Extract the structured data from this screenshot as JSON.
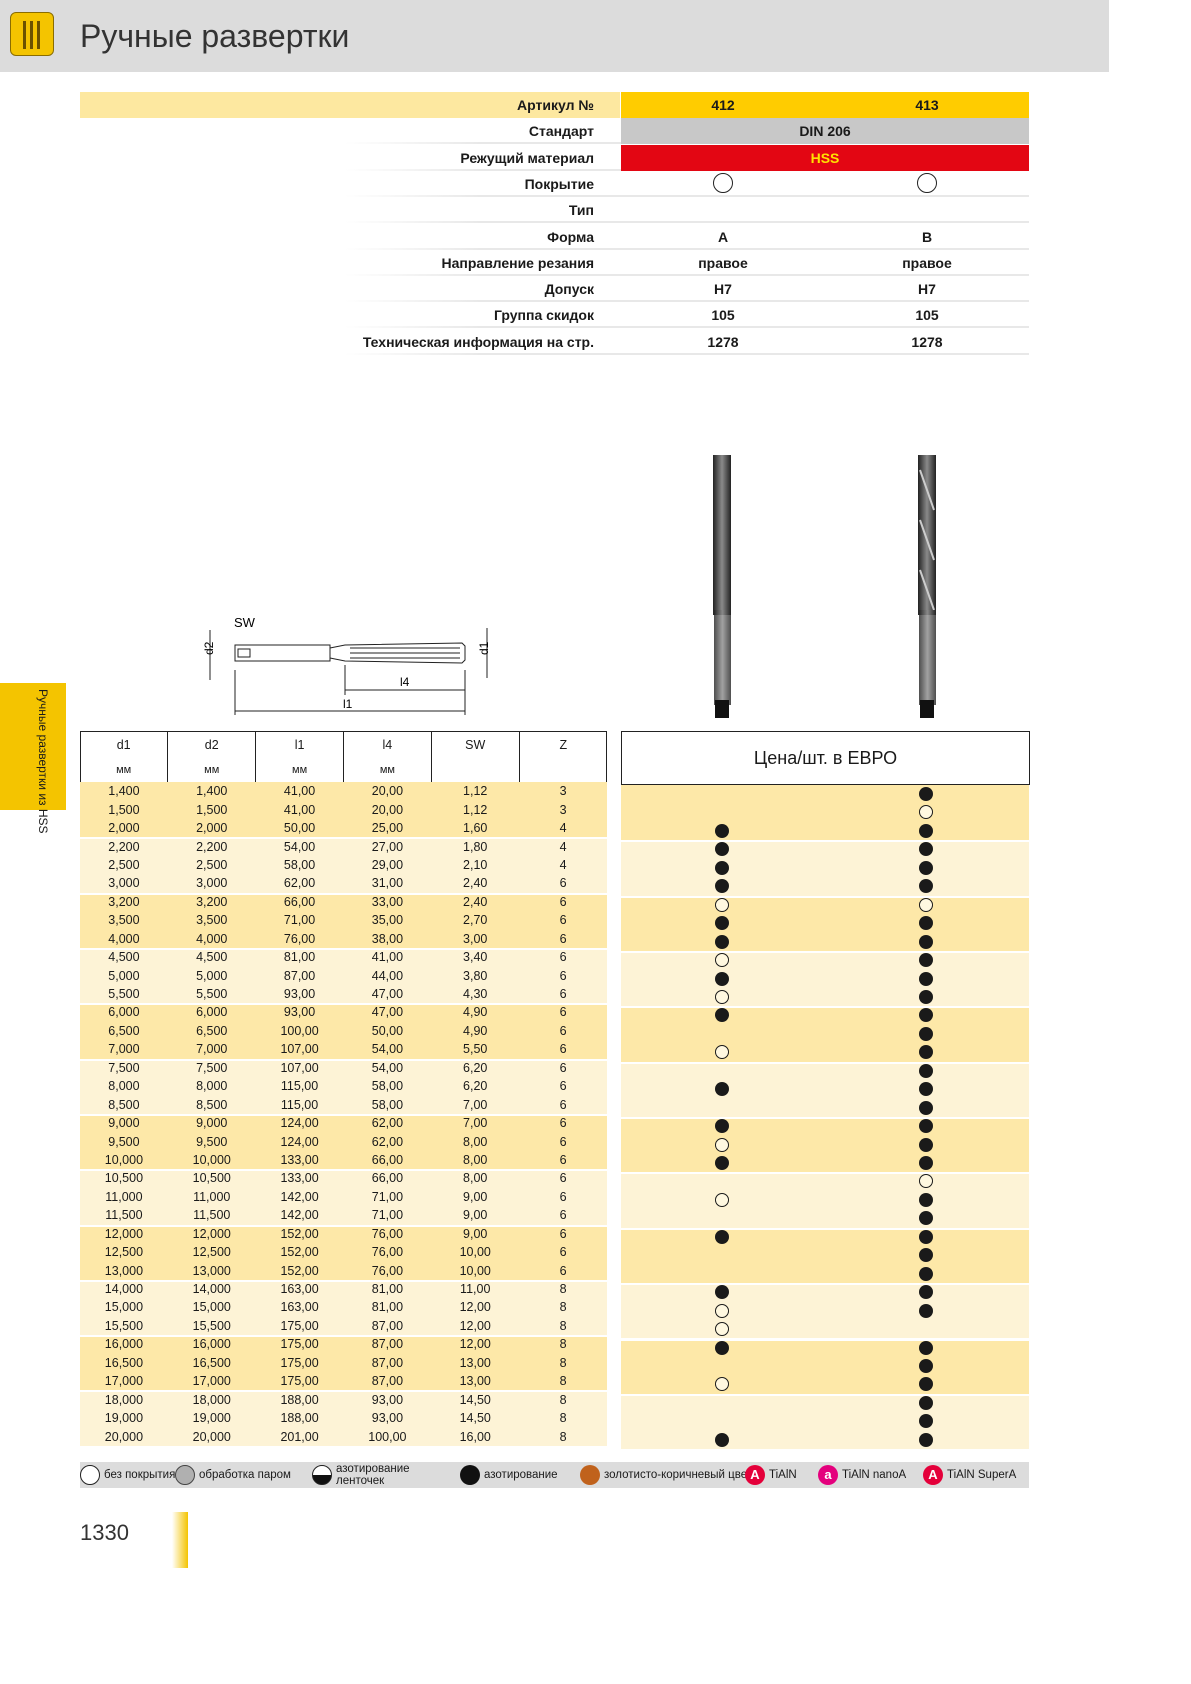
{
  "header": {
    "title": "Ручные развертки",
    "icon": "reamer-catalog-icon"
  },
  "side_tab": {
    "text": "Ручные развертки из HSS"
  },
  "specs": {
    "rows": [
      {
        "label": "Артикул №",
        "v412": "412",
        "v413": "413"
      },
      {
        "label": "Стандарт",
        "merged": "DIN 206"
      },
      {
        "label": "Режущий материал",
        "merged": "HSS"
      },
      {
        "label": "Покрытие",
        "v412": "",
        "v413": ""
      },
      {
        "label": "Тип",
        "v412": "",
        "v413": ""
      },
      {
        "label": "Форма",
        "v412": "A",
        "v413": "B"
      },
      {
        "label": "Направление резания",
        "v412": "правое",
        "v413": "правое"
      },
      {
        "label": "Допуск",
        "v412": "H7",
        "v413": "H7"
      },
      {
        "label": "Группа скидок",
        "v412": "105",
        "v413": "105"
      },
      {
        "label": "Техническая информация на стр.",
        "v412": "1278",
        "v413": "1278"
      }
    ],
    "colors": {
      "article": "#ffcc00",
      "article_label": "#fde8a0",
      "standard": "#c8c8c8",
      "material": "#e30613"
    }
  },
  "drawing": {
    "labels": {
      "sw": "SW",
      "d2": "d2",
      "d1": "d1",
      "l4": "l4",
      "l1": "l1"
    }
  },
  "table": {
    "headers": [
      "d1",
      "d2",
      "l1",
      "l4",
      "SW",
      "Z"
    ],
    "units": [
      "мм",
      "мм",
      "мм",
      "мм",
      "",
      ""
    ],
    "price_header": "Цена/шт. в ЕВРО",
    "rows": [
      [
        "1,400",
        "1,400",
        "41,00",
        "20,00",
        "1,12",
        "3",
        "",
        "f"
      ],
      [
        "1,500",
        "1,500",
        "41,00",
        "20,00",
        "1,12",
        "3",
        "",
        "o"
      ],
      [
        "2,000",
        "2,000",
        "50,00",
        "25,00",
        "1,60",
        "4",
        "f",
        "f"
      ],
      [
        "2,200",
        "2,200",
        "54,00",
        "27,00",
        "1,80",
        "4",
        "f",
        "f"
      ],
      [
        "2,500",
        "2,500",
        "58,00",
        "29,00",
        "2,10",
        "4",
        "f",
        "f"
      ],
      [
        "3,000",
        "3,000",
        "62,00",
        "31,00",
        "2,40",
        "6",
        "f",
        "f"
      ],
      [
        "3,200",
        "3,200",
        "66,00",
        "33,00",
        "2,40",
        "6",
        "o",
        "o"
      ],
      [
        "3,500",
        "3,500",
        "71,00",
        "35,00",
        "2,70",
        "6",
        "f",
        "f"
      ],
      [
        "4,000",
        "4,000",
        "76,00",
        "38,00",
        "3,00",
        "6",
        "f",
        "f"
      ],
      [
        "4,500",
        "4,500",
        "81,00",
        "41,00",
        "3,40",
        "6",
        "o",
        "f"
      ],
      [
        "5,000",
        "5,000",
        "87,00",
        "44,00",
        "3,80",
        "6",
        "f",
        "f"
      ],
      [
        "5,500",
        "5,500",
        "93,00",
        "47,00",
        "4,30",
        "6",
        "o",
        "f"
      ],
      [
        "6,000",
        "6,000",
        "93,00",
        "47,00",
        "4,90",
        "6",
        "f",
        "f"
      ],
      [
        "6,500",
        "6,500",
        "100,00",
        "50,00",
        "4,90",
        "6",
        "",
        "f"
      ],
      [
        "7,000",
        "7,000",
        "107,00",
        "54,00",
        "5,50",
        "6",
        "o",
        "f"
      ],
      [
        "7,500",
        "7,500",
        "107,00",
        "54,00",
        "6,20",
        "6",
        "",
        "f"
      ],
      [
        "8,000",
        "8,000",
        "115,00",
        "58,00",
        "6,20",
        "6",
        "f",
        "f"
      ],
      [
        "8,500",
        "8,500",
        "115,00",
        "58,00",
        "7,00",
        "6",
        "",
        "f"
      ],
      [
        "9,000",
        "9,000",
        "124,00",
        "62,00",
        "7,00",
        "6",
        "f",
        "f"
      ],
      [
        "9,500",
        "9,500",
        "124,00",
        "62,00",
        "8,00",
        "6",
        "o",
        "f"
      ],
      [
        "10,000",
        "10,000",
        "133,00",
        "66,00",
        "8,00",
        "6",
        "f",
        "f"
      ],
      [
        "10,500",
        "10,500",
        "133,00",
        "66,00",
        "8,00",
        "6",
        "",
        "o"
      ],
      [
        "11,000",
        "11,000",
        "142,00",
        "71,00",
        "9,00",
        "6",
        "o",
        "f"
      ],
      [
        "11,500",
        "11,500",
        "142,00",
        "71,00",
        "9,00",
        "6",
        "",
        "f"
      ],
      [
        "12,000",
        "12,000",
        "152,00",
        "76,00",
        "9,00",
        "6",
        "f",
        "f"
      ],
      [
        "12,500",
        "12,500",
        "152,00",
        "76,00",
        "10,00",
        "6",
        "",
        "f"
      ],
      [
        "13,000",
        "13,000",
        "152,00",
        "76,00",
        "10,00",
        "6",
        "",
        "f"
      ],
      [
        "14,000",
        "14,000",
        "163,00",
        "81,00",
        "11,00",
        "8",
        "f",
        "f"
      ],
      [
        "15,000",
        "15,000",
        "163,00",
        "81,00",
        "12,00",
        "8",
        "o",
        "f"
      ],
      [
        "15,500",
        "15,500",
        "175,00",
        "87,00",
        "12,00",
        "8",
        "o",
        ""
      ],
      [
        "16,000",
        "16,000",
        "175,00",
        "87,00",
        "12,00",
        "8",
        "f",
        "f"
      ],
      [
        "16,500",
        "16,500",
        "175,00",
        "87,00",
        "13,00",
        "8",
        "",
        "f"
      ],
      [
        "17,000",
        "17,000",
        "175,00",
        "87,00",
        "13,00",
        "8",
        "o",
        "f"
      ],
      [
        "18,000",
        "18,000",
        "188,00",
        "93,00",
        "14,50",
        "8",
        "",
        "f"
      ],
      [
        "19,000",
        "19,000",
        "188,00",
        "93,00",
        "14,50",
        "8",
        "",
        "f"
      ],
      [
        "20,000",
        "20,000",
        "201,00",
        "100,00",
        "16,00",
        "8",
        "f",
        "f"
      ]
    ]
  },
  "legend": [
    {
      "label": "без покрытия",
      "icon": "uncoated-circle-icon"
    },
    {
      "label": "обработка паром",
      "icon": "steam-treated-circle-icon"
    },
    {
      "label": "азотирование ленточек",
      "icon": "half-nitrided-circle-icon"
    },
    {
      "label": "азотирование",
      "icon": "nitrided-circle-icon"
    },
    {
      "label": "золотисто-коричневый цвет",
      "icon": "gold-brown-circle-icon"
    },
    {
      "label": "TiAlN",
      "letter": "A",
      "color": "#e4003a"
    },
    {
      "label": "TiAlN nanoA",
      "letter": "a",
      "color": "#e4007d"
    },
    {
      "label": "TiAlN SuperA",
      "letter": "A",
      "color": "#e4003a"
    }
  ],
  "footer": {
    "page_number": "1330"
  }
}
